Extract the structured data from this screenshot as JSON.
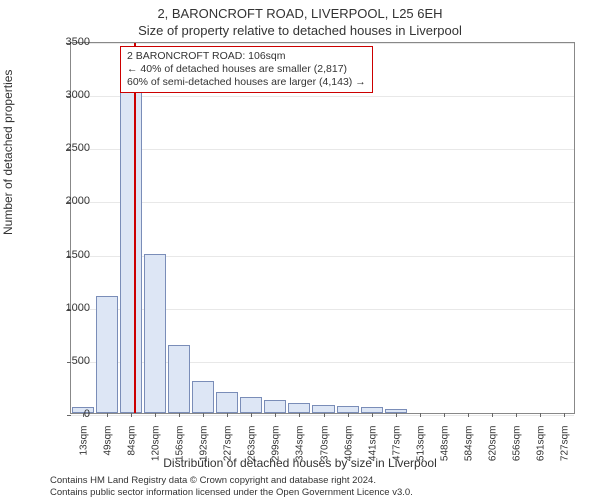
{
  "title_main": "2, BARONCROFT ROAD, LIVERPOOL, L25 6EH",
  "title_sub": "Size of property relative to detached houses in Liverpool",
  "annotation": {
    "line1": "2 BARONCROFT ROAD: 106sqm",
    "line2": "← 40% of detached houses are smaller (2,817)",
    "line3": "60% of semi-detached houses are larger (4,143) →"
  },
  "chart": {
    "type": "bar",
    "bar_fill": "#dde6f5",
    "bar_stroke": "#7a8db8",
    "marker_color": "#cc0000",
    "grid_color": "#e8e8e8",
    "border_color": "#888888",
    "background_color": "#ffffff",
    "ylabel": "Number of detached properties",
    "xlabel": "Distribution of detached houses by size in Liverpool",
    "ylim": [
      0,
      3500
    ],
    "yticks": [
      0,
      500,
      1000,
      1500,
      2000,
      2500,
      3000,
      3500
    ],
    "xtick_labels": [
      "13sqm",
      "49sqm",
      "84sqm",
      "120sqm",
      "156sqm",
      "192sqm",
      "227sqm",
      "263sqm",
      "299sqm",
      "334sqm",
      "370sqm",
      "406sqm",
      "441sqm",
      "477sqm",
      "513sqm",
      "548sqm",
      "584sqm",
      "620sqm",
      "656sqm",
      "691sqm",
      "727sqm"
    ],
    "values": [
      60,
      1100,
      3250,
      1500,
      640,
      300,
      200,
      150,
      120,
      90,
      80,
      65,
      55,
      40,
      0,
      0,
      0,
      0,
      0,
      0,
      0
    ],
    "marker_x_index": 2.6,
    "label_fontsize": 12,
    "tick_fontsize": 10.5
  },
  "footer": {
    "line1": "Contains HM Land Registry data © Crown copyright and database right 2024.",
    "line2": "Contains public sector information licensed under the Open Government Licence v3.0."
  }
}
